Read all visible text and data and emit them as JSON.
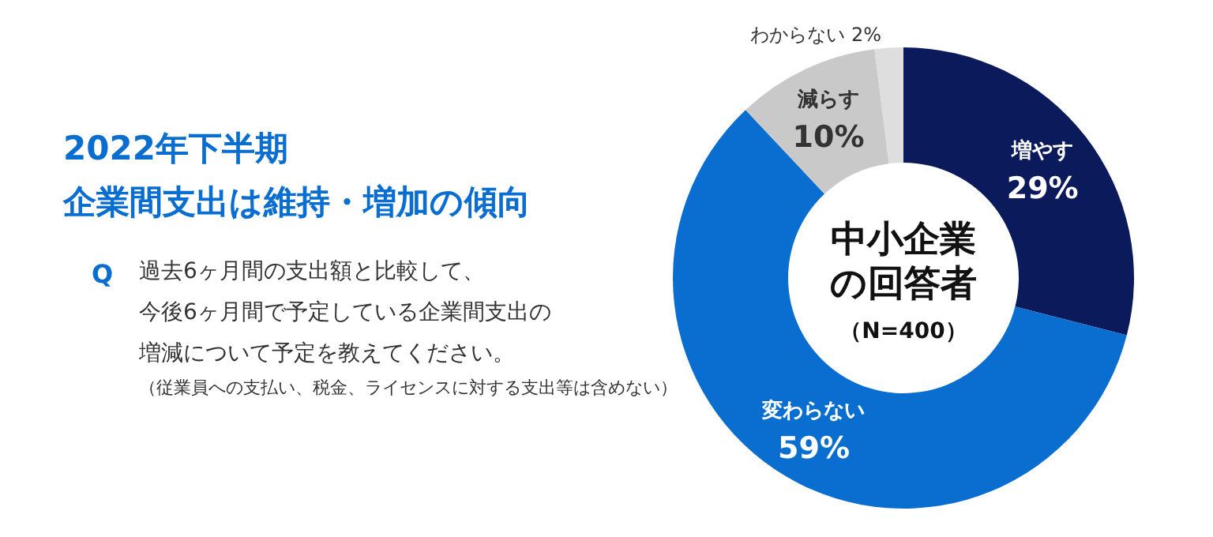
{
  "chart_data": {
    "type": "donut",
    "title": "2022年下半期企業間支出は維持・増加の傾向",
    "subtitle": "過去6ヶ月間の支出額と比較して、今後6ヶ月間で予定している企業間支出の増減について予定を教えてください。",
    "annotations": [
      "Q",
      "（従業員への支払い、税金、ライセンスに対する支出等は含めない）",
      "中小企業の回答者（N=400）"
    ],
    "categories": [
      "増やす",
      "変わらない",
      "減らす",
      "わからない"
    ],
    "values": [
      29,
      59,
      10,
      2
    ],
    "value_labels": [
      "29%",
      "59%",
      "10%",
      "2%"
    ],
    "colors": [
      "#0b1a5b",
      "#0a6ed1",
      "#c9c9c9",
      "#dedede"
    ]
  }
}
